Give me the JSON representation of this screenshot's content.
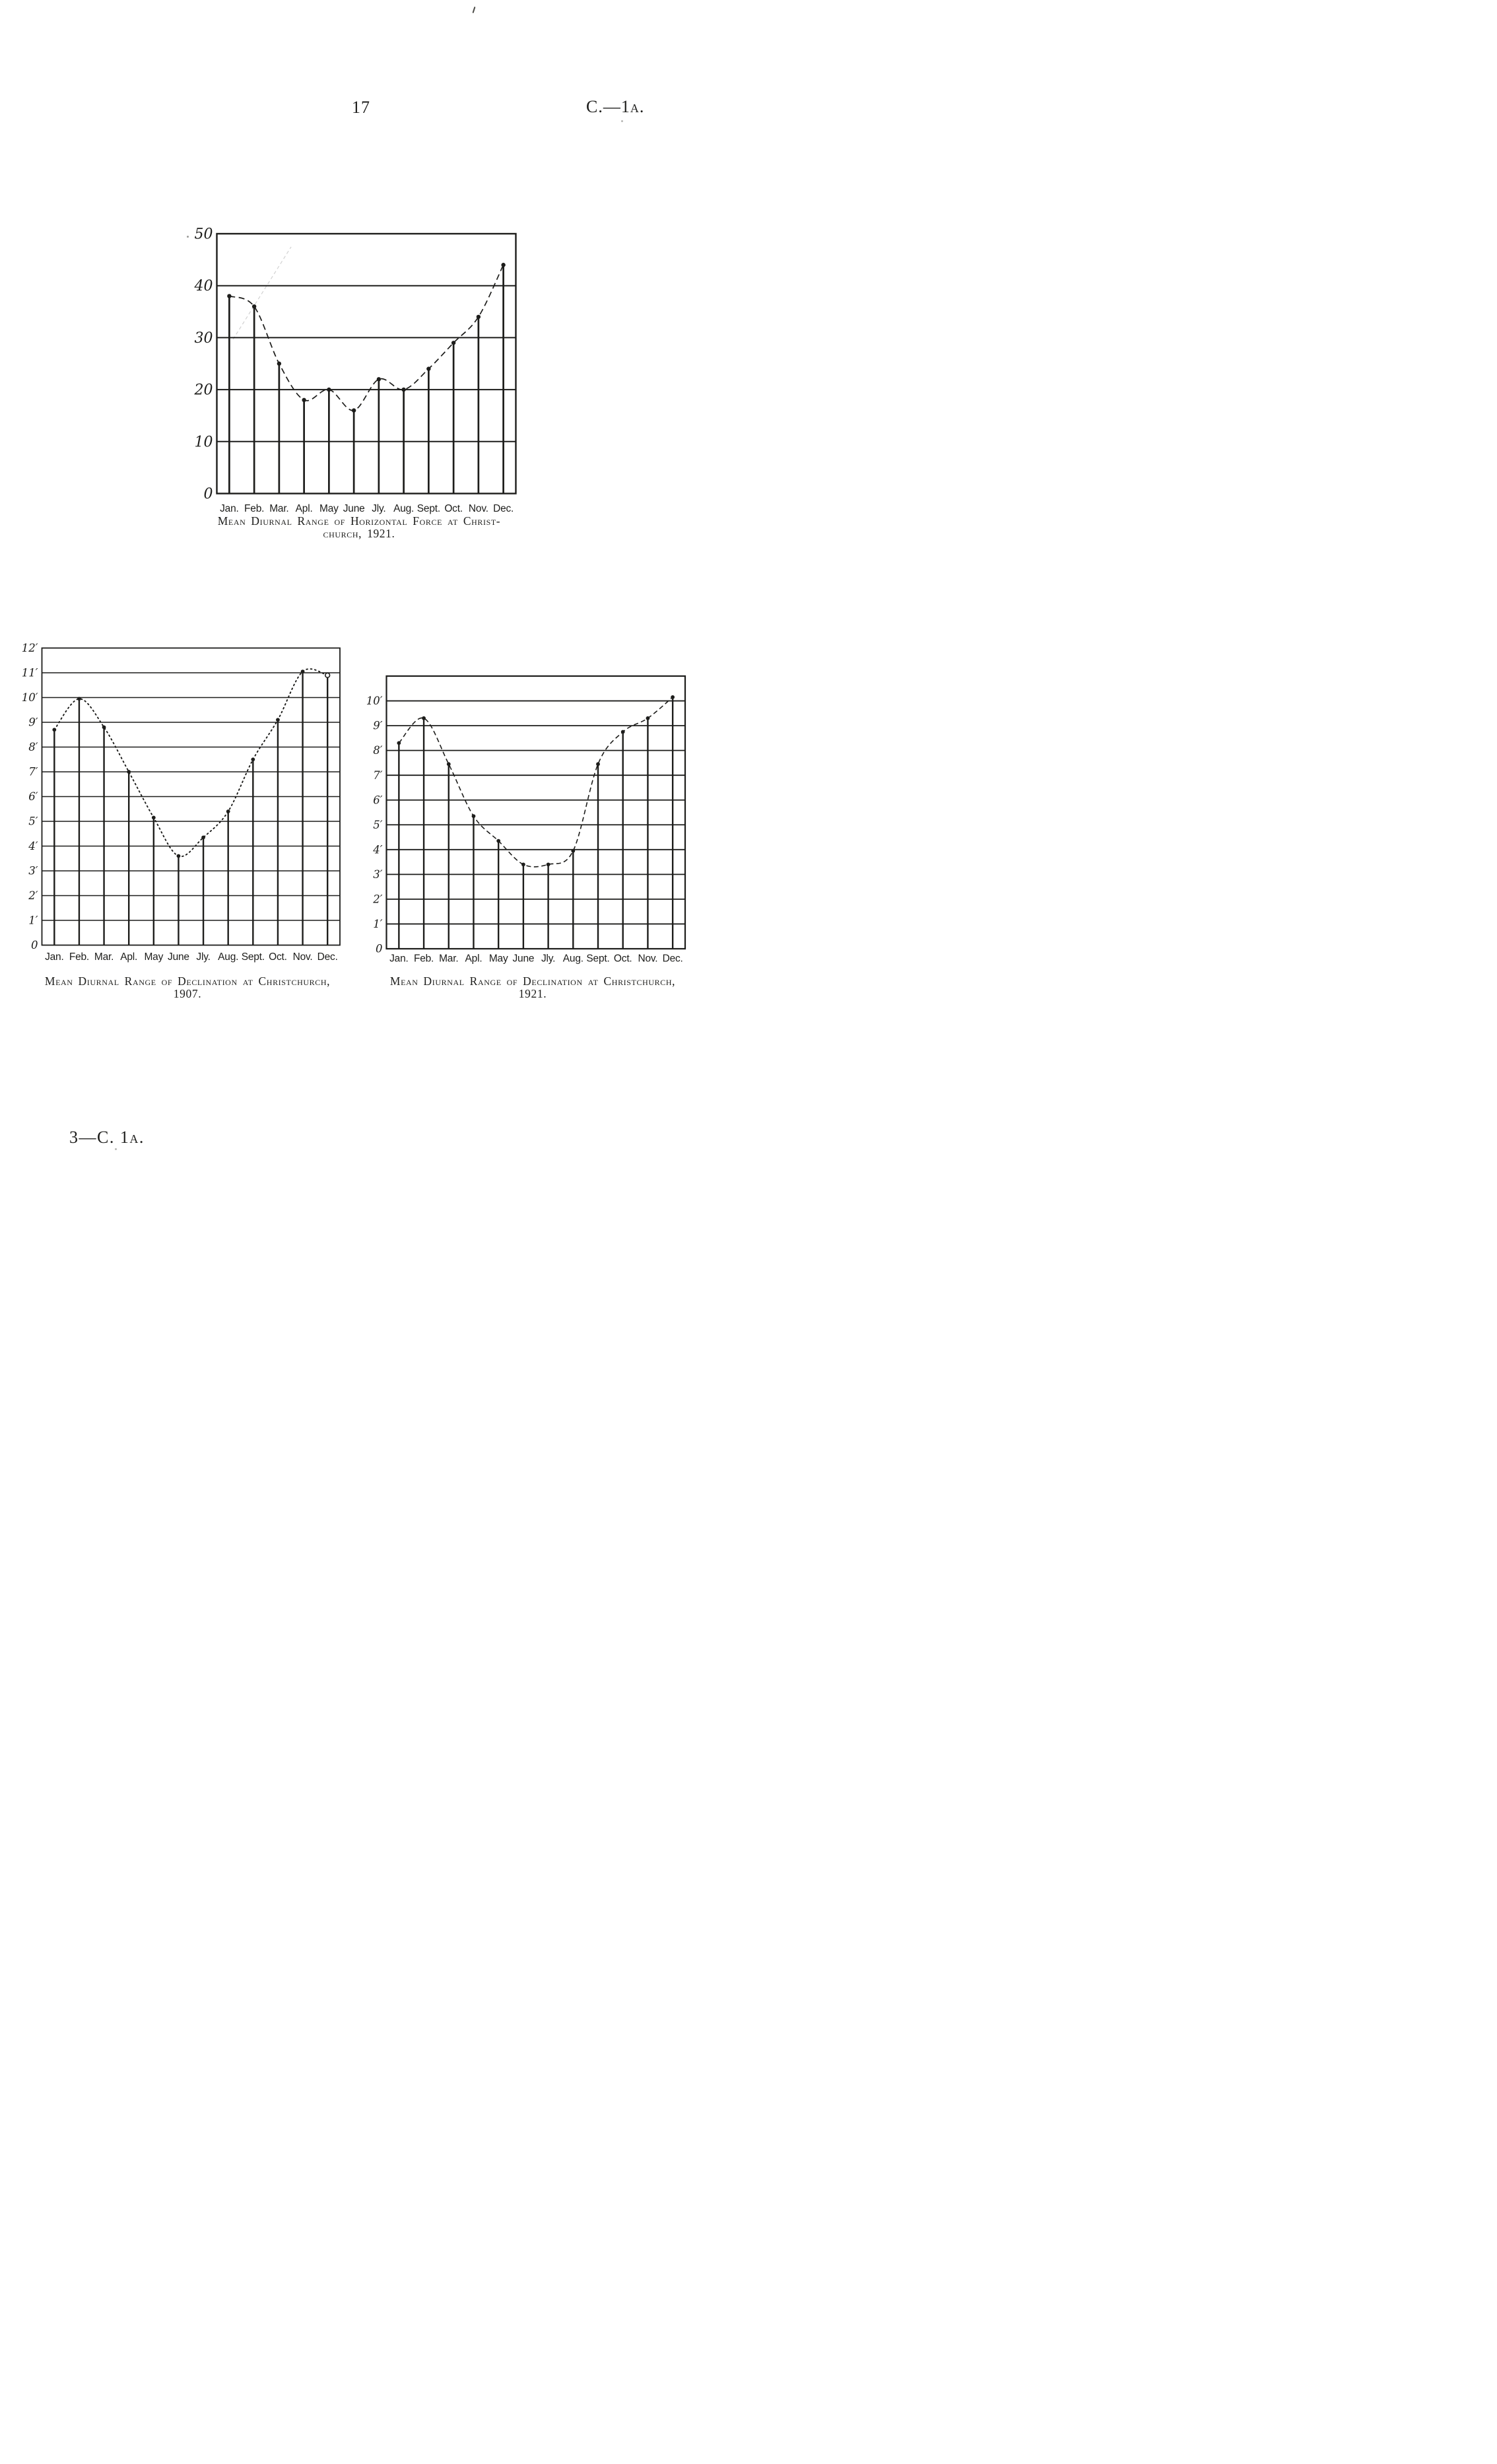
{
  "page": {
    "number": "17",
    "doc_ref": "C.—1a.",
    "footer": "3—C. 1a."
  },
  "months": [
    "Jan.",
    "Feb.",
    "Mar.",
    "Apl.",
    "May",
    "June",
    "Jly.",
    "Aug.",
    "Sept.",
    "Oct.",
    "Nov.",
    "Dec."
  ],
  "chart_data": [
    {
      "id": "horizontal-force-1921",
      "type": "line",
      "title_lines": [
        "Mean Diurnal Range of Horizontal Force at Christ-",
        "church, 1921."
      ],
      "categories": [
        "Jan.",
        "Feb.",
        "Mar.",
        "Apl.",
        "May",
        "June",
        "Jly.",
        "Aug.",
        "Sept.",
        "Oct.",
        "Nov.",
        "Dec."
      ],
      "values": [
        38,
        36,
        25,
        18,
        20,
        16,
        22,
        20,
        24,
        29,
        34,
        44
      ],
      "ylim": [
        0,
        50
      ],
      "ytick_step": 10,
      "yticklabels": [
        "0",
        "10",
        "20",
        "30",
        "40",
        "50"
      ],
      "frame_top_value": 50,
      "line_style": "dashed",
      "marker": "filled-dot",
      "grid": "horizontal-only",
      "legend": "none"
    },
    {
      "id": "declination-1907",
      "type": "line",
      "title_lines": [
        "Mean Diurnal Range of Declination at Christchurch,",
        "1907."
      ],
      "categories": [
        "Jan.",
        "Feb.",
        "Mar.",
        "Apl.",
        "May",
        "June",
        "Jly.",
        "Aug.",
        "Sept.",
        "Oct.",
        "Nov.",
        "Dec."
      ],
      "values": [
        8.7,
        9.95,
        8.8,
        7.0,
        5.15,
        3.6,
        4.35,
        5.4,
        7.5,
        9.1,
        11.05,
        10.9
      ],
      "ylim": [
        0,
        12
      ],
      "ytick_step": 1,
      "yticklabels": [
        "0",
        "1′",
        "2′",
        "3′",
        "4′",
        "5′",
        "6′",
        "7′",
        "8′",
        "9′",
        "10′",
        "11′",
        "12′"
      ],
      "frame_top_value": 12,
      "line_style": "dotted",
      "marker": "filled-dot",
      "open_marker_indices": [
        11
      ],
      "grid": "horizontal-only",
      "legend": "none"
    },
    {
      "id": "declination-1921",
      "type": "line",
      "title_lines": [
        "Mean Diurnal Range of Declination at Christchurch,",
        "1921."
      ],
      "categories": [
        "Jan.",
        "Feb.",
        "Mar.",
        "Apl.",
        "May",
        "June",
        "Jly.",
        "Aug.",
        "Sept.",
        "Oct.",
        "Nov.",
        "Dec."
      ],
      "values": [
        8.3,
        9.3,
        7.45,
        5.35,
        4.35,
        3.4,
        3.4,
        3.95,
        7.45,
        8.75,
        9.3,
        10.15
      ],
      "ylim": [
        0,
        11
      ],
      "ytick_step": 1,
      "yticklabels": [
        "0",
        "1′",
        "2′",
        "3′",
        "4′",
        "5′",
        "6′",
        "7′",
        "8′",
        "9′",
        "10′"
      ],
      "frame_top_value": 11,
      "line_style": "dashed",
      "marker": "filled-dot",
      "grid": "horizontal-only",
      "legend": "none"
    }
  ]
}
